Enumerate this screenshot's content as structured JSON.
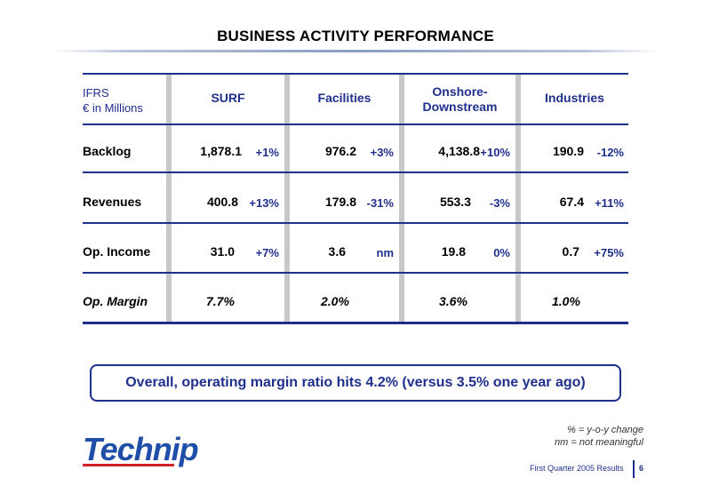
{
  "title": "BUSINESS ACTIVITY PERFORMANCE",
  "table": {
    "header_left_line1": "IFRS",
    "header_left_line2": "€ in Millions",
    "columns": [
      {
        "label_line1": "SURF",
        "label_line2": ""
      },
      {
        "label_line1": "Facilities",
        "label_line2": ""
      },
      {
        "label_line1": "Onshore-",
        "label_line2": "Downstream"
      },
      {
        "label_line1": "Industries",
        "label_line2": ""
      }
    ],
    "rows": [
      {
        "label": "Backlog",
        "cells": [
          {
            "value": "1,878.1",
            "change": "+1%"
          },
          {
            "value": "976.2",
            "change": "+3%"
          },
          {
            "value": "4,138.8",
            "change": "+10%"
          },
          {
            "value": "190.9",
            "change": "-12%"
          }
        ]
      },
      {
        "label": "Revenues",
        "cells": [
          {
            "value": "400.8",
            "change": "+13%"
          },
          {
            "value": "179.8",
            "change": "-31%"
          },
          {
            "value": "553.3",
            "change": "-3%"
          },
          {
            "value": "67.4",
            "change": "+11%"
          }
        ]
      },
      {
        "label": "Op. Income",
        "cells": [
          {
            "value": "31.0",
            "change": "+7%"
          },
          {
            "value": "3.6",
            "change": "nm"
          },
          {
            "value": "19.8",
            "change": "0%"
          },
          {
            "value": "0.7",
            "change": "+75%"
          }
        ]
      },
      {
        "label": "Op. Margin",
        "cells": [
          {
            "value": "7.7%",
            "change": ""
          },
          {
            "value": "2.0%",
            "change": ""
          },
          {
            "value": "3.6%",
            "change": ""
          },
          {
            "value": "1.0%",
            "change": ""
          }
        ]
      }
    ]
  },
  "callout": "Overall, operating margin ratio hits 4.2% (versus 3.5% one year ago)",
  "notes": [
    "% = y-o-y change",
    "nm = not meaningful"
  ],
  "logo_text": "Technip",
  "footer": {
    "label": "First Quarter 2005 Results",
    "page": "6"
  },
  "colors": {
    "accent": "#1f2f8c",
    "logo_blue": "#1f4ea8",
    "logo_red": "#d2232a",
    "separator": "#c8c8c8"
  }
}
